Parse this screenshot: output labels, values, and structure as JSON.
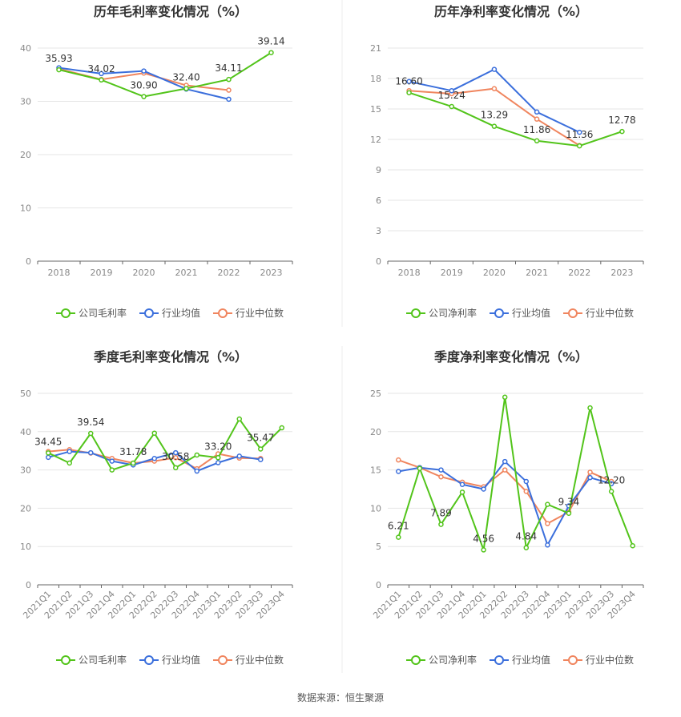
{
  "source_text": "数据来源：恒生聚源",
  "chart_data": [
    {
      "type": "line",
      "title": "历年毛利率变化情况（%）",
      "categories": [
        "2018",
        "2019",
        "2020",
        "2021",
        "2022",
        "2023"
      ],
      "y_ticks": [
        "0",
        "10",
        "20",
        "30",
        "40"
      ],
      "ylim": [
        0,
        40
      ],
      "grid": true,
      "legend": "bottom",
      "series": [
        {
          "name": "公司毛利率",
          "color": "#52c41a",
          "values": [
            35.93,
            34.02,
            30.9,
            32.4,
            34.11,
            39.14
          ]
        },
        {
          "name": "行业均值",
          "color": "#3b6fdc",
          "values": [
            36.3,
            35.2,
            35.7,
            32.3,
            30.4,
            null
          ]
        },
        {
          "name": "行业中位数",
          "color": "#f0855e",
          "values": [
            36.1,
            34.1,
            35.3,
            33.0,
            32.1,
            null
          ]
        }
      ],
      "data_labels": [
        {
          "index": 0,
          "text": "35.93"
        },
        {
          "index": 1,
          "text": "34.02"
        },
        {
          "index": 2,
          "text": "30.90"
        },
        {
          "index": 3,
          "text": "32.40"
        },
        {
          "index": 4,
          "text": "34.11"
        },
        {
          "index": 5,
          "text": "39.14"
        }
      ]
    },
    {
      "type": "line",
      "title": "历年净利率变化情况（%）",
      "categories": [
        "2018",
        "2019",
        "2020",
        "2021",
        "2022",
        "2023"
      ],
      "y_ticks": [
        "0",
        "3",
        "6",
        "9",
        "12",
        "15",
        "18",
        "21"
      ],
      "ylim": [
        0,
        21
      ],
      "grid": true,
      "legend": "bottom",
      "series": [
        {
          "name": "公司净利率",
          "color": "#52c41a",
          "values": [
            16.6,
            15.24,
            13.29,
            11.86,
            11.36,
            12.78
          ]
        },
        {
          "name": "行业均值",
          "color": "#3b6fdc",
          "values": [
            17.7,
            16.8,
            18.9,
            14.7,
            12.7,
            null
          ]
        },
        {
          "name": "行业中位数",
          "color": "#f0855e",
          "values": [
            16.8,
            16.5,
            17.0,
            14.0,
            11.4,
            null
          ]
        }
      ],
      "data_labels": [
        {
          "index": 0,
          "text": "16.60"
        },
        {
          "index": 1,
          "text": "15.24"
        },
        {
          "index": 2,
          "text": "13.29"
        },
        {
          "index": 3,
          "text": "11.86"
        },
        {
          "index": 4,
          "text": "11.36"
        },
        {
          "index": 5,
          "text": "12.78"
        }
      ]
    },
    {
      "type": "line",
      "title": "季度毛利率变化情况（%）",
      "categories": [
        "2021Q1",
        "2021Q2",
        "2021Q3",
        "2021Q4",
        "2022Q1",
        "2022Q2",
        "2022Q3",
        "2022Q4",
        "2023Q1",
        "2023Q2",
        "2023Q3",
        "2023Q4"
      ],
      "y_ticks": [
        "0",
        "10",
        "20",
        "30",
        "40",
        "50"
      ],
      "ylim": [
        0,
        50
      ],
      "grid": true,
      "legend": "bottom",
      "series": [
        {
          "name": "公司毛利率",
          "color": "#52c41a",
          "values": [
            34.45,
            31.8,
            39.54,
            30.0,
            31.78,
            39.6,
            30.58,
            33.9,
            33.2,
            43.3,
            35.47,
            41.0
          ]
        },
        {
          "name": "行业均值",
          "color": "#3b6fdc",
          "values": [
            33.3,
            34.8,
            34.5,
            32.3,
            31.3,
            33.0,
            34.5,
            29.7,
            31.9,
            33.6,
            32.7,
            null
          ]
        },
        {
          "name": "行业中位数",
          "color": "#f0855e",
          "values": [
            34.8,
            35.3,
            34.4,
            33.0,
            31.8,
            32.3,
            33.2,
            30.3,
            34.2,
            33.1,
            33.0,
            null
          ]
        }
      ],
      "data_labels": [
        {
          "index": 0,
          "text": "34.45"
        },
        {
          "index": 2,
          "text": "39.54"
        },
        {
          "index": 4,
          "text": "31.78"
        },
        {
          "index": 6,
          "text": "30.58"
        },
        {
          "index": 8,
          "text": "33.20"
        },
        {
          "index": 10,
          "text": "35.47"
        }
      ]
    },
    {
      "type": "line",
      "title": "季度净利率变化情况（%）",
      "categories": [
        "2021Q1",
        "2021Q2",
        "2021Q3",
        "2021Q4",
        "2022Q1",
        "2022Q2",
        "2022Q3",
        "2022Q4",
        "2023Q1",
        "2023Q2",
        "2023Q3",
        "2023Q4"
      ],
      "y_ticks": [
        "0",
        "5",
        "10",
        "15",
        "20",
        "25"
      ],
      "ylim": [
        0,
        25
      ],
      "grid": true,
      "legend": "bottom",
      "series": [
        {
          "name": "公司净利率",
          "color": "#52c41a",
          "values": [
            6.21,
            15.2,
            7.89,
            12.1,
            4.56,
            24.5,
            4.84,
            10.5,
            9.34,
            23.1,
            12.2,
            5.1
          ]
        },
        {
          "name": "行业均值",
          "color": "#3b6fdc",
          "values": [
            14.8,
            15.3,
            15.0,
            13.1,
            12.5,
            16.1,
            13.5,
            5.2,
            10.3,
            14.0,
            13.2,
            null
          ]
        },
        {
          "name": "行业中位数",
          "color": "#f0855e",
          "values": [
            16.3,
            15.3,
            14.1,
            13.4,
            12.8,
            15.0,
            12.2,
            8.0,
            9.5,
            14.7,
            13.5,
            null
          ]
        }
      ],
      "data_labels": [
        {
          "index": 0,
          "text": "6.21"
        },
        {
          "index": 2,
          "text": "7.89"
        },
        {
          "index": 4,
          "text": "4.56"
        },
        {
          "index": 6,
          "text": "4.84"
        },
        {
          "index": 8,
          "text": "9.34"
        },
        {
          "index": 10,
          "text": "12.20"
        }
      ]
    }
  ]
}
